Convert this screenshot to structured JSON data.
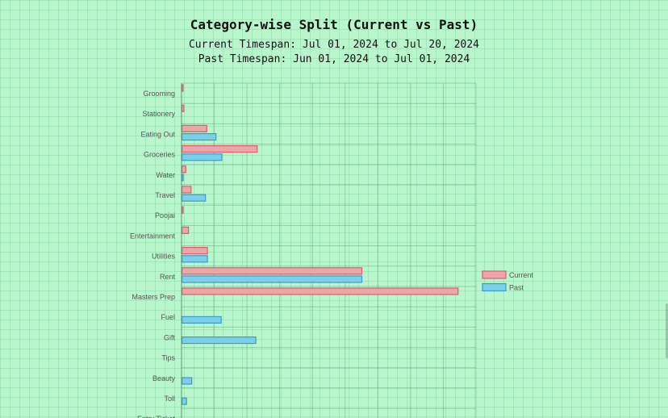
{
  "chart_data": {
    "type": "bar",
    "orientation": "horizontal",
    "title": "Category-wise Split (Current vs Past)",
    "subtitle_lines": [
      "Current Timespan: Jul 01, 2024 to Jul 20, 2024",
      "Past Timespan: Jun 01, 2024 to Jul 01, 2024"
    ],
    "categories": [
      "Grooming",
      "Stationery",
      "Eating Out",
      "Groceries",
      "Water",
      "Travel",
      "Poojai",
      "Entertainment",
      "Utilities",
      "Rent",
      "Masters Prep",
      "Fuel",
      "Gift",
      "Tips",
      "Beauty",
      "Toll",
      "Entry Ticket"
    ],
    "series": [
      {
        "name": "Current",
        "color": "#e8a8a8",
        "border": "#e05a70",
        "values": [
          80,
          300,
          3800,
          11500,
          600,
          1400,
          150,
          1000,
          3900,
          27500,
          42200,
          0,
          0,
          0,
          0,
          0,
          0
        ]
      },
      {
        "name": "Past",
        "color": "#7ccfe4",
        "border": "#3a9ad9",
        "values": [
          0,
          0,
          5200,
          6100,
          200,
          3600,
          0,
          0,
          3900,
          27500,
          0,
          6000,
          11300,
          0,
          1500,
          700,
          0
        ]
      }
    ],
    "xlim": [
      0,
      45000
    ],
    "grid": true,
    "legend_position": "right"
  }
}
